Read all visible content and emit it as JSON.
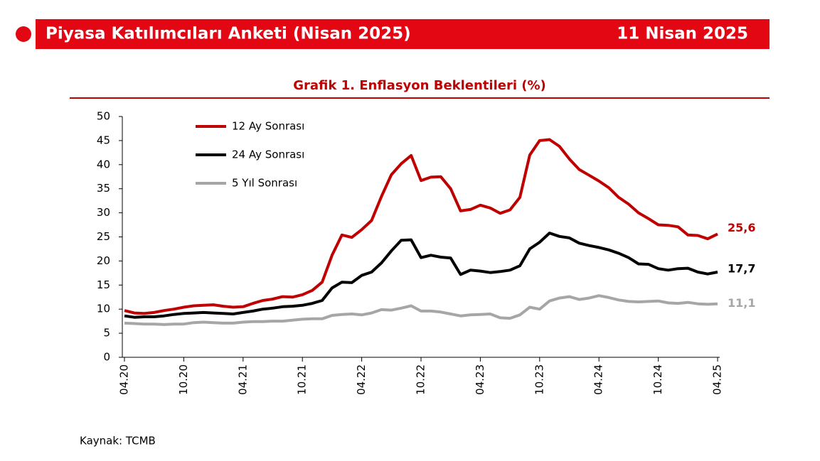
{
  "header": {
    "title": "Piyasa Katılımcıları Anketi (Nisan 2025)",
    "date": "11 Nisan 2025"
  },
  "chart_data": {
    "type": "line",
    "title": "Grafik 1. Enflasyon Beklentileri (%)",
    "categories": [
      "04.20",
      null,
      null,
      null,
      null,
      null,
      "10.20",
      null,
      null,
      null,
      null,
      null,
      "04.21",
      null,
      null,
      null,
      null,
      null,
      "10.21",
      null,
      null,
      null,
      null,
      null,
      "04.22",
      null,
      null,
      null,
      null,
      null,
      "10.22",
      null,
      null,
      null,
      null,
      null,
      "04.23",
      null,
      null,
      null,
      null,
      null,
      "10.23",
      null,
      null,
      null,
      null,
      null,
      "04.24",
      null,
      null,
      null,
      null,
      null,
      "10.24",
      null,
      null,
      null,
      null,
      null,
      "04.25"
    ],
    "series": [
      {
        "name": "12 Ay Sonrası",
        "color": "#c00000",
        "values": [
          9.7,
          9.2,
          9.1,
          9.3,
          9.7,
          10.0,
          10.4,
          10.7,
          10.8,
          10.9,
          10.6,
          10.4,
          10.5,
          11.2,
          11.8,
          12.1,
          12.6,
          12.5,
          13.0,
          13.9,
          15.6,
          21.2,
          25.4,
          24.9,
          26.5,
          28.4,
          33.4,
          37.9,
          40.2,
          41.9,
          36.7,
          37.4,
          37.5,
          35.0,
          30.4,
          30.7,
          31.6,
          31.0,
          29.9,
          30.6,
          33.2,
          42.0,
          45.0,
          45.2,
          43.8,
          41.2,
          39.0,
          37.8,
          36.6,
          35.2,
          33.2,
          31.8,
          30.0,
          28.8,
          27.5,
          27.4,
          27.1,
          25.4,
          25.3,
          24.6,
          25.6
        ],
        "value_labels": [
          null,
          null,
          null,
          null,
          null,
          null,
          null,
          null,
          null,
          null,
          null,
          null,
          null,
          null,
          null,
          null,
          null,
          null,
          null,
          null,
          null,
          null,
          null,
          null,
          null,
          null,
          null,
          null,
          null,
          null,
          null,
          null,
          null,
          null,
          null,
          null,
          null,
          null,
          null,
          null,
          null,
          null,
          null,
          null,
          null,
          null,
          null,
          null,
          null,
          null,
          null,
          null,
          null,
          null,
          null,
          null,
          null,
          null,
          null,
          null,
          "25,6"
        ]
      },
      {
        "name": "24 Ay Sonrası",
        "color": "#000000",
        "values": [
          8.6,
          8.3,
          8.4,
          8.4,
          8.6,
          8.9,
          9.1,
          9.2,
          9.3,
          9.2,
          9.1,
          9.0,
          9.3,
          9.6,
          10.0,
          10.2,
          10.5,
          10.6,
          10.8,
          11.2,
          11.8,
          14.4,
          15.6,
          15.5,
          17.0,
          17.7,
          19.6,
          22.1,
          24.3,
          24.4,
          20.7,
          21.2,
          20.8,
          20.6,
          17.2,
          18.1,
          17.9,
          17.6,
          17.8,
          18.1,
          19.0,
          22.5,
          23.9,
          25.8,
          25.1,
          24.8,
          23.7,
          23.2,
          22.8,
          22.3,
          21.6,
          20.7,
          19.4,
          19.3,
          18.4,
          18.1,
          18.4,
          18.5,
          17.7,
          17.3,
          17.7
        ],
        "value_labels": [
          null,
          null,
          null,
          null,
          null,
          null,
          null,
          null,
          null,
          null,
          null,
          null,
          null,
          null,
          null,
          null,
          null,
          null,
          null,
          null,
          null,
          null,
          null,
          null,
          null,
          null,
          null,
          null,
          null,
          null,
          null,
          null,
          null,
          null,
          null,
          null,
          null,
          null,
          null,
          null,
          null,
          null,
          null,
          null,
          null,
          null,
          null,
          null,
          null,
          null,
          null,
          null,
          null,
          null,
          null,
          null,
          null,
          null,
          null,
          null,
          "17,7"
        ]
      },
      {
        "name": "5 Yıl Sonrası",
        "color": "#a6a6a6",
        "values": [
          7.1,
          7.0,
          6.9,
          6.9,
          6.8,
          6.9,
          6.9,
          7.2,
          7.3,
          7.2,
          7.1,
          7.1,
          7.3,
          7.4,
          7.4,
          7.5,
          7.5,
          7.7,
          7.9,
          8.0,
          8.0,
          8.7,
          8.9,
          9.0,
          8.8,
          9.2,
          9.9,
          9.8,
          10.2,
          10.7,
          9.6,
          9.6,
          9.4,
          9.0,
          8.6,
          8.8,
          8.9,
          9.0,
          8.2,
          8.1,
          8.8,
          10.4,
          10.0,
          11.7,
          12.3,
          12.6,
          12.0,
          12.3,
          12.8,
          12.4,
          11.9,
          11.6,
          11.5,
          11.6,
          11.7,
          11.3,
          11.2,
          11.4,
          11.1,
          11.0,
          11.1
        ],
        "value_labels": [
          null,
          null,
          null,
          null,
          null,
          null,
          null,
          null,
          null,
          null,
          null,
          null,
          null,
          null,
          null,
          null,
          null,
          null,
          null,
          null,
          null,
          null,
          null,
          null,
          null,
          null,
          null,
          null,
          null,
          null,
          null,
          null,
          null,
          null,
          null,
          null,
          null,
          null,
          null,
          null,
          null,
          null,
          null,
          null,
          null,
          null,
          null,
          null,
          null,
          null,
          null,
          null,
          null,
          null,
          null,
          null,
          null,
          null,
          null,
          null,
          "11,1"
        ]
      }
    ],
    "ylim": [
      0,
      50
    ],
    "yticks": [
      0,
      5,
      10,
      15,
      20,
      25,
      30,
      35,
      40,
      45,
      50
    ]
  },
  "source": "Kaynak: TCMB"
}
